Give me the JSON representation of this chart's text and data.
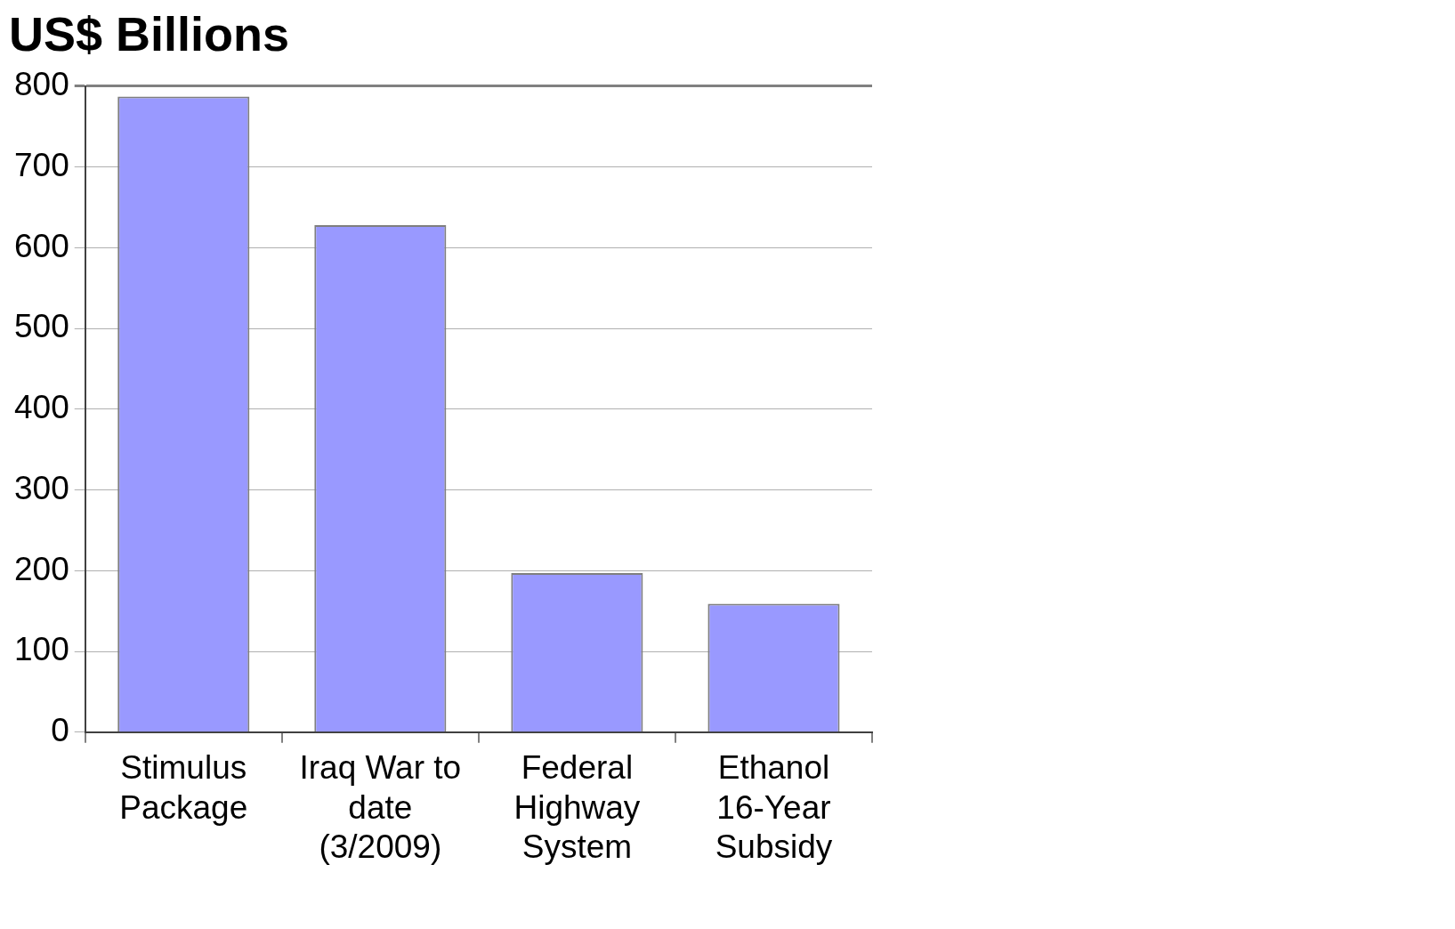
{
  "chart_data": {
    "type": "bar",
    "title": "US$ Billions",
    "categories": [
      "Stimulus Package",
      "Iraq War to date (3/2009)",
      "Federal Highway System",
      "Ethanol 16-Year Subsidy"
    ],
    "values": [
      787,
      628,
      197,
      159
    ],
    "color": "#9999ff",
    "ylim": [
      0,
      800
    ],
    "yticks": [
      0,
      100,
      200,
      300,
      400,
      500,
      600,
      700,
      800
    ],
    "grid": "y",
    "legend": false
  }
}
